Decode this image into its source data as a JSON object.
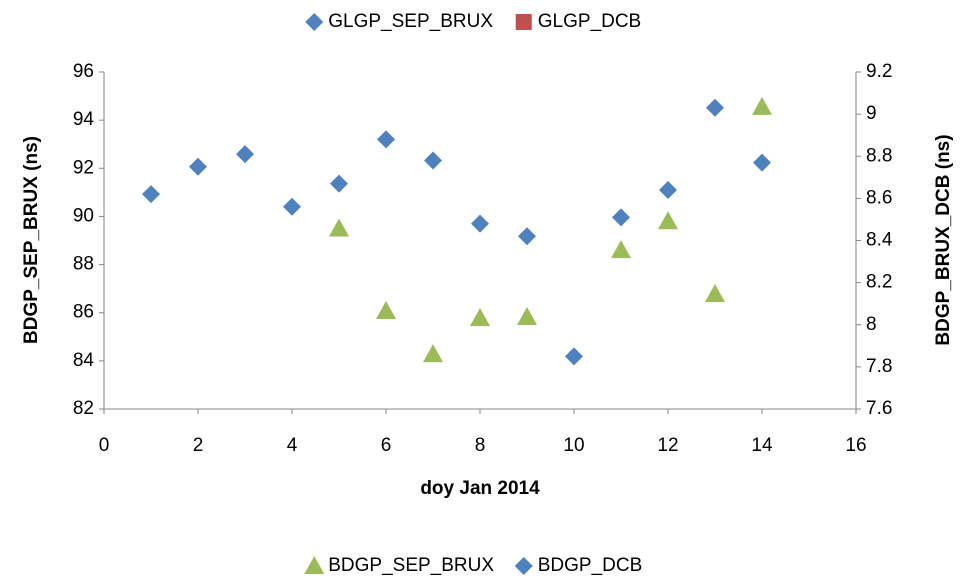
{
  "chart_data": {
    "type": "scatter",
    "xlabel": "doy Jan 2014",
    "ylabel": "BDGP_SEP_BRUX (ns)",
    "y2label": "BDGP_BRUX_DCB (ns)",
    "x": [
      1,
      2,
      3,
      4,
      5,
      6,
      7,
      8,
      9,
      10,
      11,
      12,
      13,
      14
    ],
    "xlim": [
      0,
      16
    ],
    "xticks": [
      0,
      2,
      4,
      6,
      8,
      10,
      12,
      14,
      16
    ],
    "ylim": [
      82,
      96
    ],
    "yticks": [
      82,
      84,
      86,
      88,
      90,
      92,
      94,
      96
    ],
    "y2lim": [
      7.6,
      9.2
    ],
    "y2ticks": [
      7.6,
      7.8,
      8,
      8.2,
      8.4,
      8.6,
      8.8,
      9,
      9.2
    ],
    "series": [
      {
        "name": "GLGP_SEP_BRUX",
        "color": "#4f81bd",
        "marker": "diamond",
        "legend": "top",
        "values": [
          null,
          null,
          null,
          null,
          null,
          null,
          null,
          null,
          null,
          null,
          null,
          null,
          null,
          null
        ]
      },
      {
        "name": "GLGP_DCB",
        "color": "#c0504d",
        "marker": "square",
        "legend": "top",
        "values": [
          null,
          null,
          null,
          null,
          null,
          null,
          null,
          null,
          null,
          null,
          null,
          null,
          null,
          null
        ]
      },
      {
        "name": "BDGP_SEP_BRUX",
        "color": "#9bbb59",
        "marker": "triangle",
        "legend": "bottom",
        "values": [
          null,
          null,
          null,
          null,
          89.5,
          86.07,
          84.28,
          85.78,
          85.82,
          null,
          88.6,
          89.8,
          86.78,
          94.55
        ]
      },
      {
        "name": "BDGP_DCB",
        "color": "#4f81bd",
        "marker": "diamond",
        "legend": "bottom",
        "axis": "y2",
        "values": [
          8.62,
          8.75,
          8.81,
          8.56,
          8.67,
          8.88,
          8.78,
          8.48,
          8.42,
          7.85,
          8.51,
          8.64,
          9.03,
          8.77
        ]
      }
    ]
  }
}
